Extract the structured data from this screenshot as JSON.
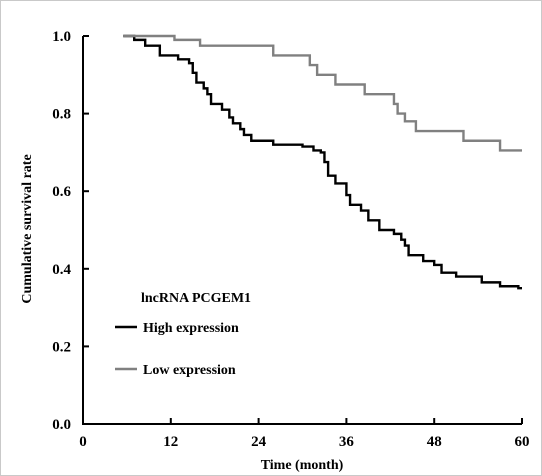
{
  "chart_data": {
    "type": "line",
    "title": "",
    "xlabel": "Time (month)",
    "ylabel": "Cumulative survival rate",
    "xlim": [
      0,
      60
    ],
    "ylim": [
      0,
      1.0
    ],
    "x_ticks": [
      0,
      12,
      24,
      36,
      48,
      60
    ],
    "y_ticks": [
      0.0,
      0.2,
      0.4,
      0.6,
      0.8,
      1.0
    ],
    "grid": false,
    "legend": {
      "title": "lncRNA PCGEM1",
      "placement": "lower-left"
    },
    "series": [
      {
        "name": "High expression",
        "color": "#000000",
        "steps": [
          [
            5.5,
            1.0
          ],
          [
            7.0,
            0.99
          ],
          [
            8.5,
            0.975
          ],
          [
            10.5,
            0.95
          ],
          [
            13.0,
            0.94
          ],
          [
            14.5,
            0.93
          ],
          [
            15.0,
            0.905
          ],
          [
            15.5,
            0.88
          ],
          [
            16.5,
            0.865
          ],
          [
            17.0,
            0.85
          ],
          [
            17.5,
            0.825
          ],
          [
            19.0,
            0.81
          ],
          [
            20.0,
            0.79
          ],
          [
            20.5,
            0.775
          ],
          [
            21.5,
            0.76
          ],
          [
            22.0,
            0.745
          ],
          [
            23.0,
            0.73
          ],
          [
            26.0,
            0.72
          ],
          [
            30.0,
            0.715
          ],
          [
            31.5,
            0.705
          ],
          [
            32.5,
            0.7
          ],
          [
            33.0,
            0.675
          ],
          [
            33.5,
            0.64
          ],
          [
            34.5,
            0.62
          ],
          [
            36.0,
            0.59
          ],
          [
            36.5,
            0.565
          ],
          [
            38.0,
            0.55
          ],
          [
            39.0,
            0.525
          ],
          [
            40.5,
            0.5
          ],
          [
            42.5,
            0.49
          ],
          [
            43.5,
            0.475
          ],
          [
            44.0,
            0.46
          ],
          [
            44.5,
            0.435
          ],
          [
            46.5,
            0.42
          ],
          [
            48.0,
            0.41
          ],
          [
            49.0,
            0.39
          ],
          [
            51.0,
            0.38
          ],
          [
            54.5,
            0.365
          ],
          [
            57.0,
            0.355
          ],
          [
            59.5,
            0.35
          ]
        ],
        "end_x": 60
      },
      {
        "name": "Low expression",
        "color": "#808080",
        "steps": [
          [
            5.5,
            1.0
          ],
          [
            12.5,
            0.99
          ],
          [
            16.0,
            0.975
          ],
          [
            26.0,
            0.95
          ],
          [
            31.0,
            0.925
          ],
          [
            32.0,
            0.9
          ],
          [
            34.5,
            0.875
          ],
          [
            38.5,
            0.85
          ],
          [
            42.5,
            0.825
          ],
          [
            43.0,
            0.8
          ],
          [
            44.0,
            0.78
          ],
          [
            45.5,
            0.755
          ],
          [
            52.0,
            0.73
          ],
          [
            57.0,
            0.705
          ]
        ],
        "end_x": 60
      }
    ]
  }
}
